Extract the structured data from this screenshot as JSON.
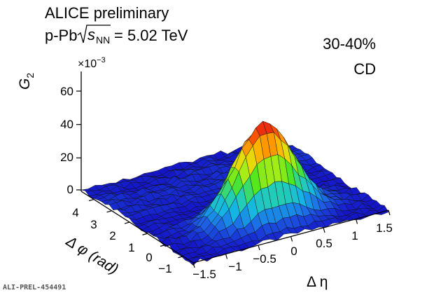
{
  "header": {
    "experiment": "ALICE preliminary",
    "system_prefix": "p-Pb",
    "system_energy": "= 5.02 TeV",
    "sqrt_s": "s",
    "sqrt_sub": "NN",
    "centrality": "30-40%",
    "tag": "CD",
    "figure_id": "ALI-PREL-454491"
  },
  "chart_data": {
    "type": "surface",
    "title": "",
    "zlabel": "G",
    "zlabel_sub": "2",
    "z_multiplier": "×10",
    "z_multiplier_exp": "−3",
    "xlabel": "Δ η",
    "ylabel": "Δ φ (rad)",
    "x_ticks": [
      "−1.5",
      "−1",
      "−0.5",
      "0",
      "0.5",
      "1",
      "1.5"
    ],
    "y_ticks": [
      "−1",
      "0",
      "1",
      "2",
      "3",
      "4"
    ],
    "z_ticks": [
      "0",
      "20",
      "40",
      "60"
    ],
    "xlim": [
      -1.5,
      1.5
    ],
    "ylim": [
      -1.57,
      4.71
    ],
    "zlim": [
      -5,
      70
    ],
    "colormap": [
      "#1414c8",
      "#1e64e6",
      "#14b4e6",
      "#28d2aa",
      "#50e61e",
      "#c8f014",
      "#ffc800",
      "#ff6400",
      "#e61414"
    ],
    "peak": {
      "x": 0,
      "y": 0,
      "z": 57,
      "sigma_x": 0.45,
      "sigma_y": 0.55
    },
    "away_side_level": 2,
    "baseline": 0
  }
}
